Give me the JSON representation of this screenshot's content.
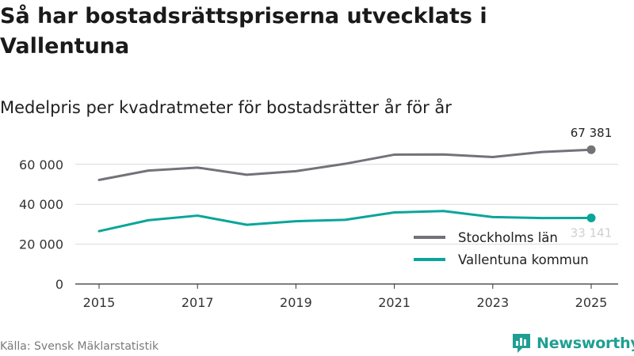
{
  "header": {
    "title": "Så har bostadsrättspriserna utvecklats i Vallentuna",
    "subtitle": "Medelpris per kvadratmeter för bostadsrätter år för år"
  },
  "footer": {
    "source": "Källa: Svensk Mäklarstatistik",
    "brand": "Newsworthy"
  },
  "chart_data": {
    "type": "line",
    "x": [
      2015,
      2016,
      2017,
      2018,
      2019,
      2020,
      2021,
      2022,
      2023,
      2024,
      2025
    ],
    "xticks": [
      "2015",
      "2017",
      "2019",
      "2021",
      "2023",
      "2025"
    ],
    "yticks": [
      "0",
      "20 000",
      "40 000",
      "60 000"
    ],
    "ylim": [
      0,
      75000
    ],
    "grid": true,
    "legend_position": "bottom-right",
    "series": [
      {
        "name": "Stockholms län",
        "color": "#737278",
        "values": [
          52200,
          56900,
          58400,
          54800,
          56600,
          60300,
          64900,
          65000,
          63700,
          66200,
          67381
        ],
        "end_label": "67 381"
      },
      {
        "name": "Vallentuna kommun",
        "color": "#0aa59a",
        "values": [
          26500,
          32000,
          34300,
          29700,
          31500,
          32200,
          35900,
          36600,
          33600,
          33100,
          33141
        ],
        "end_label": "33 141"
      }
    ]
  }
}
